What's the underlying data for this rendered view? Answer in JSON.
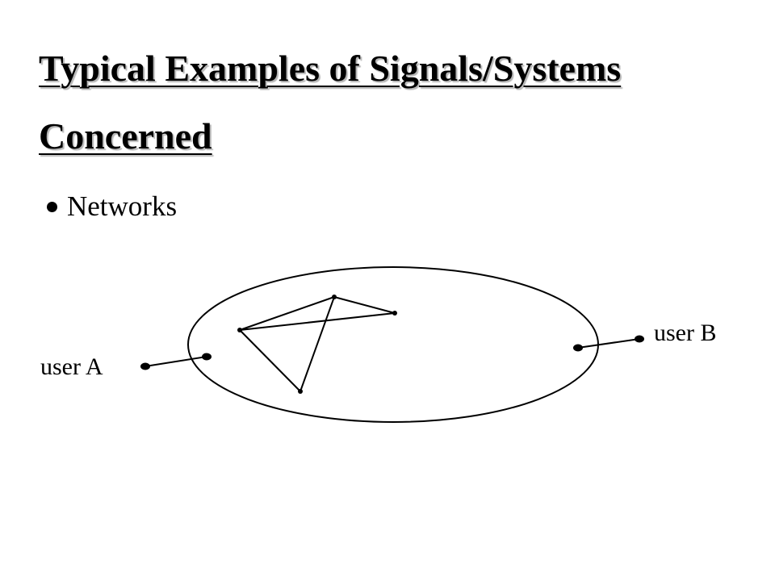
{
  "slide": {
    "title_line_1": "Typical Examples of Signals/Systems",
    "title_line_2": "Concerned",
    "bullet": "Networks"
  },
  "diagram": {
    "user_a_label": "user A",
    "user_b_label": "user B",
    "stroke_color": "#000000",
    "background_color": "#ffffff"
  }
}
